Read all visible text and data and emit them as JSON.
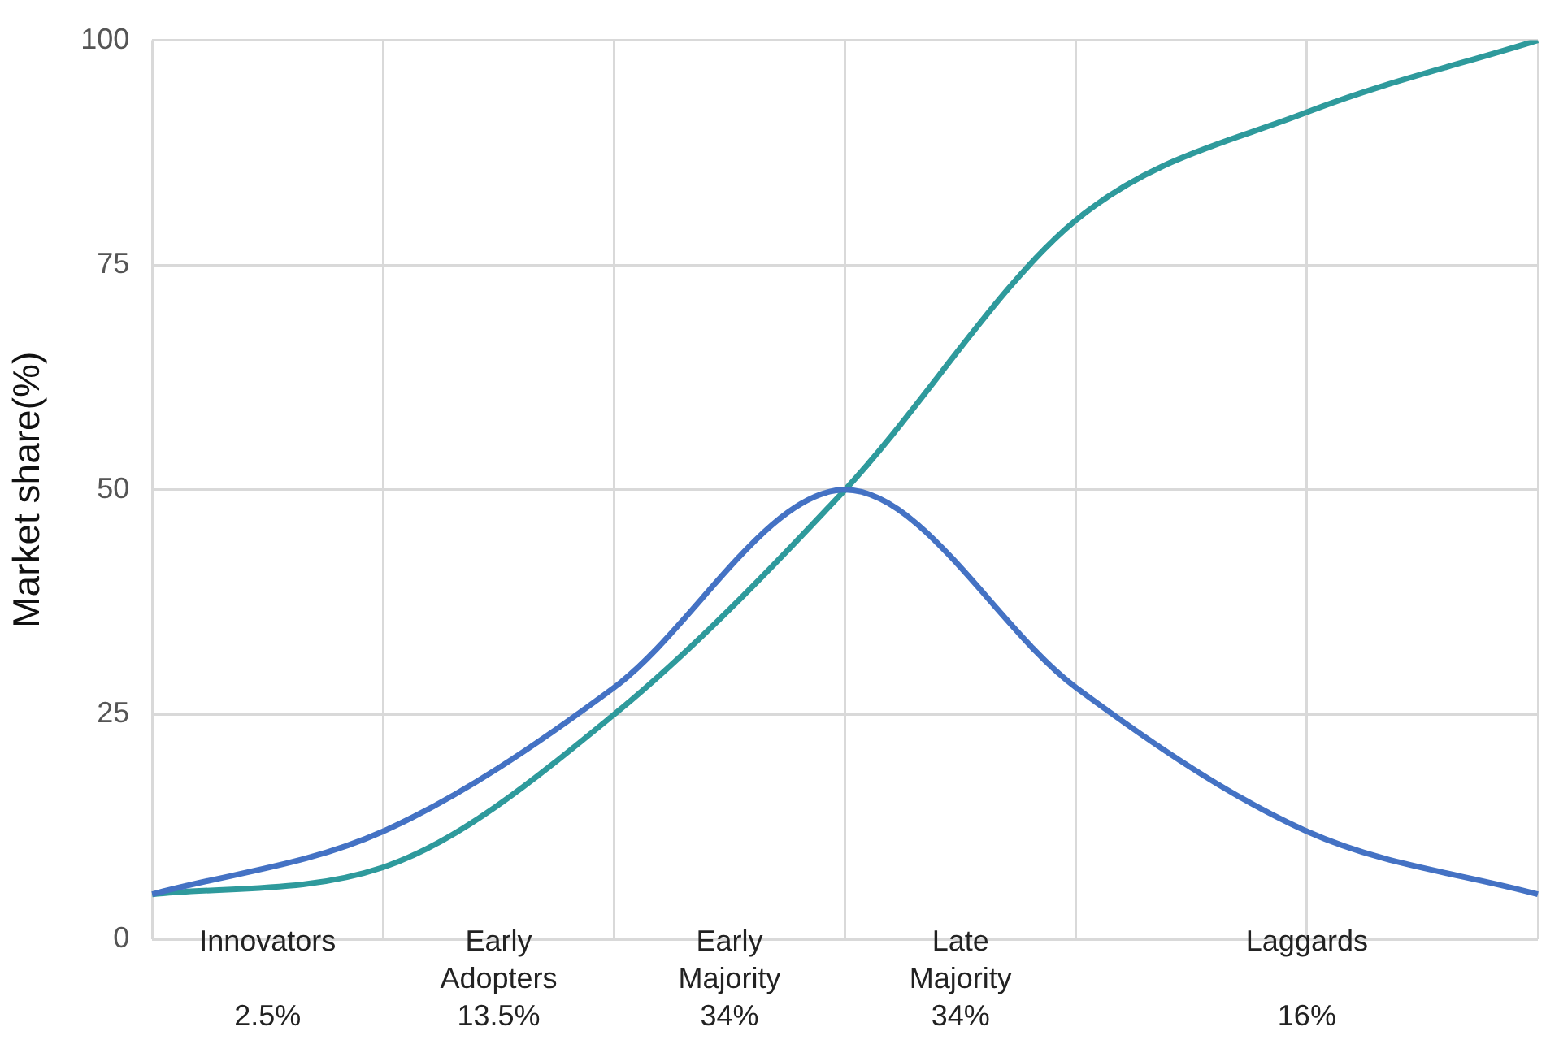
{
  "chart_data": {
    "type": "line",
    "ylabel": "Market share(%)",
    "categories": [
      null,
      null,
      null,
      null,
      null,
      null,
      null
    ],
    "series": [
      {
        "color": "#4472c4",
        "values": [
          5,
          12,
          28,
          50,
          28,
          12,
          5
        ]
      },
      {
        "color": "#2e9a9c",
        "values": [
          5,
          8,
          25,
          50,
          80,
          92,
          100
        ]
      }
    ],
    "ylim": [
      0,
      100
    ],
    "yticks": [
      0,
      25,
      50,
      75,
      100
    ],
    "grid": true,
    "legend": false,
    "tick_labels": "y",
    "marker": "none",
    "line_style": "solid",
    "annotations": [
      "Innovators\n\n2.5%",
      "Early\nAdopters\n13.5%",
      "Early\nMajority\n34%",
      "Late\nMajority\n34%",
      "Laggards\n\n16%"
    ]
  }
}
